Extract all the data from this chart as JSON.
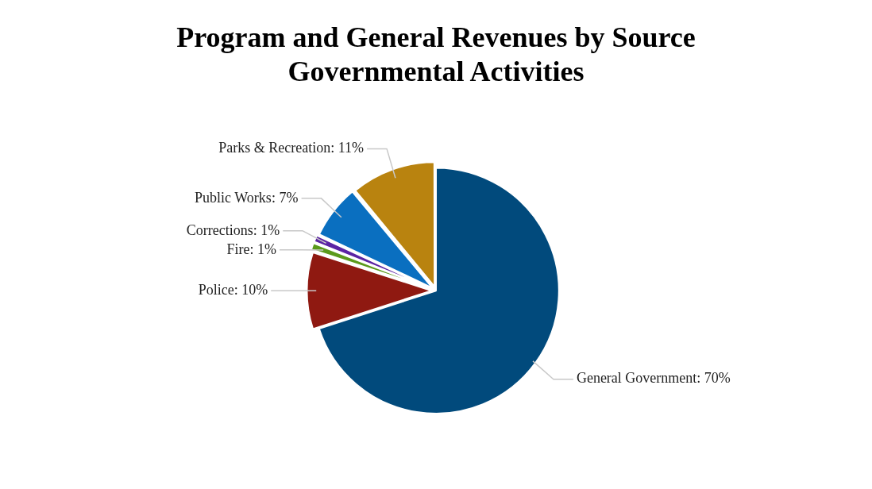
{
  "chart_data": {
    "type": "pie",
    "title": "Program and General Revenues by Source",
    "subtitle": "Governmental Activities",
    "categories": [
      "General Government",
      "Police",
      "Fire",
      "Corrections",
      "Public Works",
      "Parks & Recreation"
    ],
    "values": [
      70,
      10,
      1,
      1,
      7,
      11
    ],
    "colors": [
      "#014a7c",
      "#8f1911",
      "#5b9a1c",
      "#5b24a3",
      "#0a6fc0",
      "#b9830f"
    ],
    "value_labels": [
      ": 70%",
      ": 10%",
      ": 1%",
      ": 1%",
      ": 7%",
      ": 11%"
    ],
    "legend": false
  }
}
